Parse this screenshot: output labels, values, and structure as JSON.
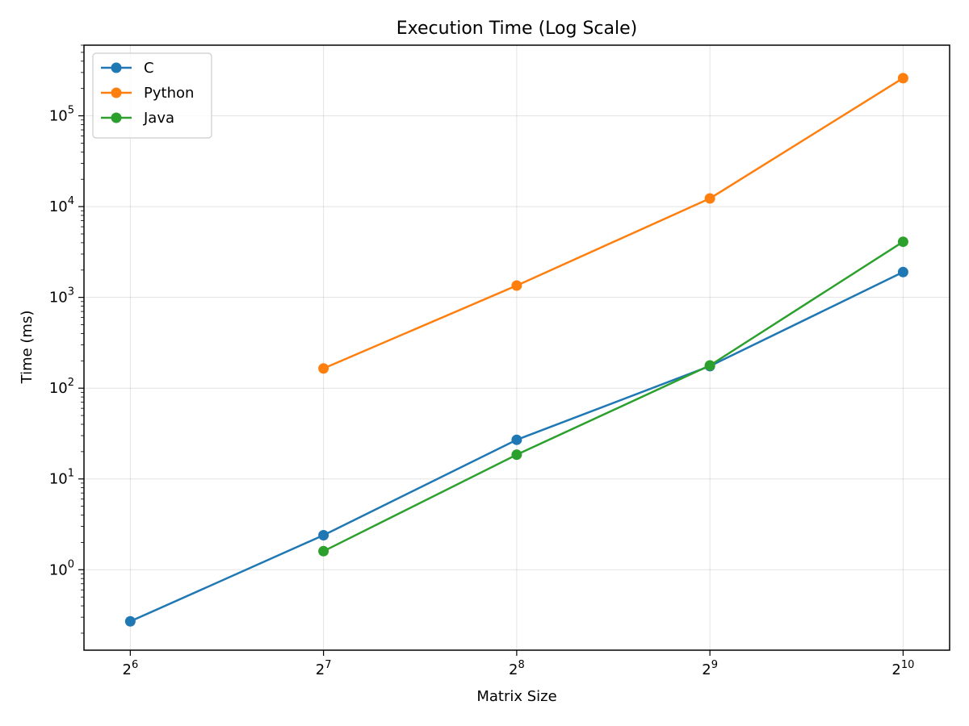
{
  "chart_data": {
    "type": "line",
    "title": "Execution Time (Log Scale)",
    "xlabel": "Matrix Size",
    "ylabel": "Time (ms)",
    "x_scale": "log2",
    "y_scale": "log10",
    "xlim": [
      54.2,
      1210
    ],
    "ylim": [
      0.13,
      600000
    ],
    "grid": true,
    "legend_position": "top-left",
    "x_ticks": [
      {
        "value": 64,
        "base": "2",
        "exp": "6"
      },
      {
        "value": 128,
        "base": "2",
        "exp": "7"
      },
      {
        "value": 256,
        "base": "2",
        "exp": "8"
      },
      {
        "value": 512,
        "base": "2",
        "exp": "9"
      },
      {
        "value": 1024,
        "base": "2",
        "exp": "10"
      }
    ],
    "y_ticks": [
      {
        "value": 1,
        "base": "10",
        "exp": "0"
      },
      {
        "value": 10,
        "base": "10",
        "exp": "1"
      },
      {
        "value": 100,
        "base": "10",
        "exp": "2"
      },
      {
        "value": 1000,
        "base": "10",
        "exp": "3"
      },
      {
        "value": 10000,
        "base": "10",
        "exp": "4"
      },
      {
        "value": 100000,
        "base": "10",
        "exp": "5"
      }
    ],
    "series": [
      {
        "name": "C",
        "color": "#1f77b4",
        "x": [
          64,
          128,
          256,
          512,
          1024
        ],
        "y": [
          0.27,
          2.4,
          27,
          175,
          1900
        ]
      },
      {
        "name": "Python",
        "color": "#ff7f0e",
        "x": [
          128,
          256,
          512,
          1024
        ],
        "y": [
          165,
          1350,
          12300,
          260000
        ]
      },
      {
        "name": "Java",
        "color": "#2ca02c",
        "x": [
          128,
          256,
          512,
          1024
        ],
        "y": [
          1.6,
          18.5,
          178,
          4100
        ]
      }
    ]
  }
}
